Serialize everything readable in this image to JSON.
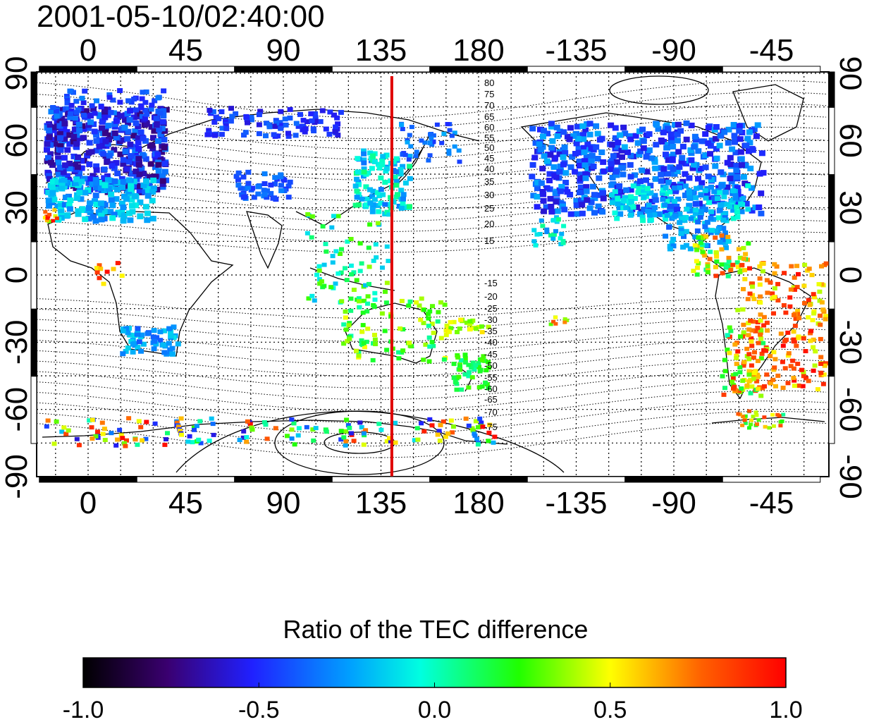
{
  "title": "2001-05-10/02:40:00",
  "map": {
    "x_ticks": [
      "0",
      "45",
      "90",
      "135",
      "180",
      "-135",
      "-90",
      "-45"
    ],
    "y_ticks": [
      "90",
      "60",
      "30",
      "0",
      "-30",
      "-60",
      "-90"
    ],
    "meridian_marker_lon": 140,
    "marker_color": "#e00000",
    "contour_labels_north": [
      "80",
      "75",
      "70",
      "65",
      "60",
      "55",
      "50",
      "45",
      "40",
      "35",
      "30",
      "25",
      "20",
      "15"
    ],
    "contour_labels_south": [
      "-15",
      "-20",
      "-25",
      "-30",
      "-35",
      "-40",
      "-45",
      "-50",
      "-55",
      "-60",
      "-65",
      "-70",
      "-75"
    ]
  },
  "colorbar": {
    "title": "Ratio of the TEC difference",
    "ticks": [
      "-1.0",
      "-0.5",
      "0.0",
      "0.5",
      "1.0"
    ],
    "range": [
      -1.0,
      1.0
    ]
  }
}
